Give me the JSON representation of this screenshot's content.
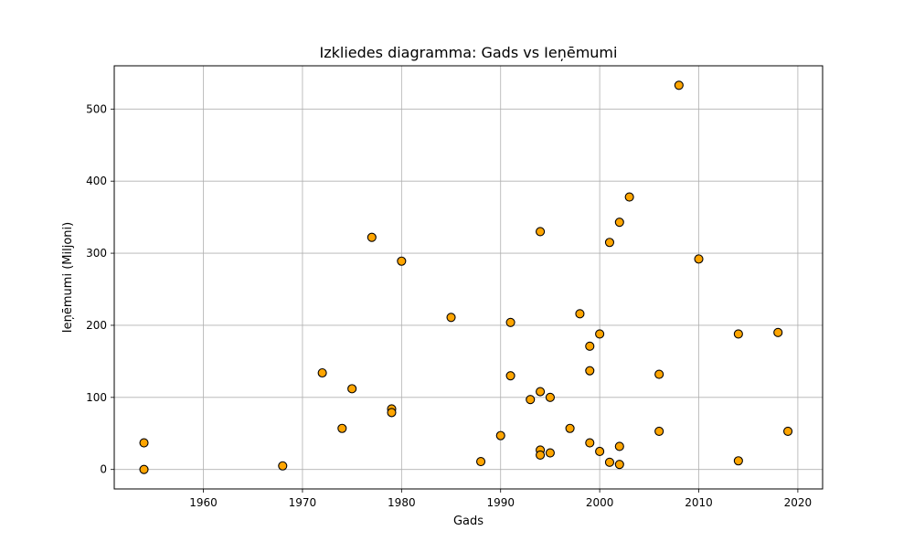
{
  "chart_data": {
    "type": "scatter",
    "title": "Izkliedes diagramma: Gads vs Ieņēmumi",
    "xlabel": "Gads",
    "ylabel": "Ieņēmumi (Miljoni)",
    "xlim": [
      1951,
      2022.5
    ],
    "ylim": [
      -27,
      560
    ],
    "xticks": [
      1960,
      1970,
      1980,
      1990,
      2000,
      2010,
      2020
    ],
    "yticks": [
      0,
      100,
      200,
      300,
      400,
      500
    ],
    "grid": true,
    "marker_color": "#FFA500",
    "marker_edge_color": "#000000",
    "points": [
      {
        "x": 1954,
        "y": 37
      },
      {
        "x": 1954,
        "y": 0
      },
      {
        "x": 1968,
        "y": 5
      },
      {
        "x": 1972,
        "y": 134
      },
      {
        "x": 1974,
        "y": 57
      },
      {
        "x": 1975,
        "y": 112
      },
      {
        "x": 1977,
        "y": 322
      },
      {
        "x": 1979,
        "y": 84
      },
      {
        "x": 1979,
        "y": 79
      },
      {
        "x": 1980,
        "y": 289
      },
      {
        "x": 1985,
        "y": 211
      },
      {
        "x": 1988,
        "y": 11
      },
      {
        "x": 1990,
        "y": 47
      },
      {
        "x": 1991,
        "y": 204
      },
      {
        "x": 1991,
        "y": 130
      },
      {
        "x": 1993,
        "y": 97
      },
      {
        "x": 1994,
        "y": 330
      },
      {
        "x": 1994,
        "y": 108
      },
      {
        "x": 1994,
        "y": 27
      },
      {
        "x": 1994,
        "y": 20
      },
      {
        "x": 1995,
        "y": 100
      },
      {
        "x": 1995,
        "y": 23
      },
      {
        "x": 1997,
        "y": 57
      },
      {
        "x": 1998,
        "y": 216
      },
      {
        "x": 1999,
        "y": 171
      },
      {
        "x": 1999,
        "y": 137
      },
      {
        "x": 1999,
        "y": 37
      },
      {
        "x": 2000,
        "y": 188
      },
      {
        "x": 2000,
        "y": 25
      },
      {
        "x": 2001,
        "y": 315
      },
      {
        "x": 2001,
        "y": 10
      },
      {
        "x": 2002,
        "y": 343
      },
      {
        "x": 2002,
        "y": 32
      },
      {
        "x": 2002,
        "y": 7
      },
      {
        "x": 2003,
        "y": 378
      },
      {
        "x": 2006,
        "y": 132
      },
      {
        "x": 2006,
        "y": 53
      },
      {
        "x": 2008,
        "y": 533
      },
      {
        "x": 2010,
        "y": 292
      },
      {
        "x": 2014,
        "y": 188
      },
      {
        "x": 2014,
        "y": 12
      },
      {
        "x": 2018,
        "y": 190
      },
      {
        "x": 2019,
        "y": 53
      }
    ]
  }
}
